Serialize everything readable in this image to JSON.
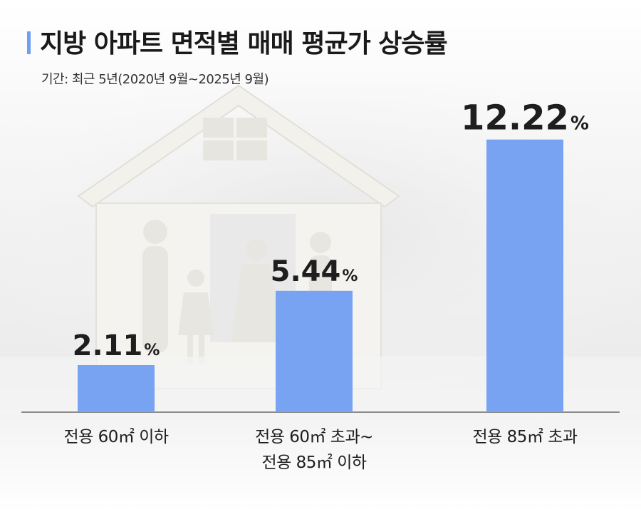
{
  "header": {
    "title": "지방 아파트 면적별 매매 평균가 상승률",
    "subtitle": "기간: 최근 5년(2020년 9월~2025년 9월)"
  },
  "colors": {
    "accent": "#6f9ff0",
    "bar": "#78a3f2"
  },
  "chart_data": {
    "type": "bar",
    "title": "지방 아파트 면적별 매매 평균가 상승률",
    "categories": [
      "전용 60㎡ 이하",
      "전용 60㎡ 초과~\n전용 85㎡ 이하",
      "전용 85㎡ 초과"
    ],
    "values": [
      2.11,
      5.44,
      12.22
    ],
    "value_labels": [
      "2.11",
      "5.44",
      "12.22"
    ],
    "unit": "%",
    "ylim": [
      0,
      14
    ],
    "grid": false,
    "legend": "none"
  }
}
